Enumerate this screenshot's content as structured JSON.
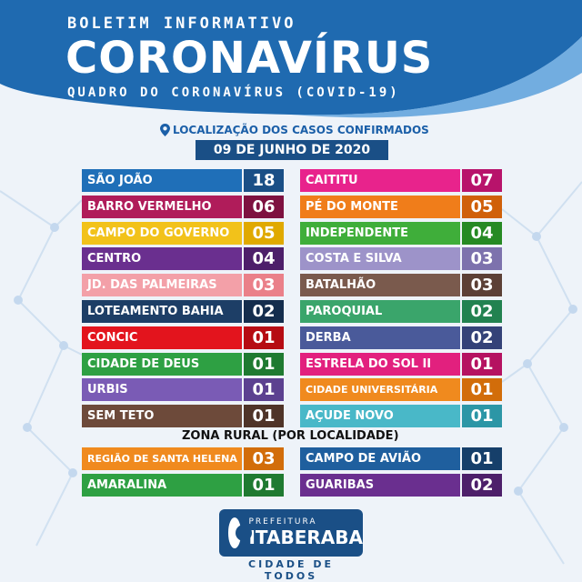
{
  "header": {
    "boletim": "BOLETIM INFORMATIVO",
    "title": "CORONAVÍRUS",
    "subtitle": "QUADRO DO CORONAVÍRUS (COVID-19)"
  },
  "location_label": "LOCALIZAÇÃO DOS CASOS CONFIRMADOS",
  "date": "09 DE JUNHO DE 2020",
  "left_list": [
    {
      "name": "SÃO JOÃO",
      "count": "18",
      "color": "#1f6fb8",
      "num_color": "#1a4f86"
    },
    {
      "name": "BARRO VERMELHO",
      "count": "06",
      "color": "#b01c5a",
      "num_color": "#7e1140"
    },
    {
      "name": "CAMPO DO GOVERNO",
      "count": "05",
      "color": "#f2c21a",
      "num_color": "#e0a900"
    },
    {
      "name": "CENTRO",
      "count": "04",
      "color": "#6a2f8f",
      "num_color": "#4d1f6a"
    },
    {
      "name": "JD. DAS PALMEIRAS",
      "count": "03",
      "color": "#f3a0a8",
      "num_color": "#ea8089"
    },
    {
      "name": "LOTEAMENTO BAHIA",
      "count": "02",
      "color": "#1d3e66",
      "num_color": "#142d4d"
    },
    {
      "name": "CONCIC",
      "count": "01",
      "color": "#e3141d",
      "num_color": "#b60c13"
    },
    {
      "name": "CIDADE DE DEUS",
      "count": "01",
      "color": "#2ea043",
      "num_color": "#1f7a31"
    },
    {
      "name": "URBIS",
      "count": "01",
      "color": "#7a5bb5",
      "num_color": "#5c4190"
    },
    {
      "name": "SEM TETO",
      "count": "01",
      "color": "#6d4a3a",
      "num_color": "#4f3428"
    }
  ],
  "right_list": [
    {
      "name": "CAITITU",
      "count": "07",
      "color": "#e8238c",
      "num_color": "#b8136b"
    },
    {
      "name": "PÉ DO MONTE",
      "count": "05",
      "color": "#f07d1a",
      "num_color": "#d0600a"
    },
    {
      "name": "INDEPENDENTE",
      "count": "04",
      "color": "#3fae3a",
      "num_color": "#268a23"
    },
    {
      "name": "COSTA E SILVA",
      "count": "03",
      "color": "#9d93c9",
      "num_color": "#7d72ad"
    },
    {
      "name": "BATALHÃO",
      "count": "03",
      "color": "#7a5a4d",
      "num_color": "#5c4036"
    },
    {
      "name": "PAROQUIAL",
      "count": "02",
      "color": "#3aa56b",
      "num_color": "#228250"
    },
    {
      "name": "DERBA",
      "count": "02",
      "color": "#4a5a9a",
      "num_color": "#344278"
    },
    {
      "name": "ESTRELA DO SOL II",
      "count": "01",
      "color": "#e2207e",
      "num_color": "#b51261"
    },
    {
      "name": "CIDADE UNIVERSITÁRIA",
      "count": "01",
      "color": "#f08a1e",
      "num_color": "#d26d0a"
    },
    {
      "name": "AÇUDE NOVO",
      "count": "01",
      "color": "#49b8c8",
      "num_color": "#2c96a6"
    }
  ],
  "zona_label": "ZONA RURAL (POR LOCALIDADE)",
  "rural_left": [
    {
      "name": "REGIÃO DE SANTA HELENA",
      "count": "03",
      "color": "#f08a1e",
      "num_color": "#d26d0a"
    },
    {
      "name": "AMARALINA",
      "count": "01",
      "color": "#2ea043",
      "num_color": "#1f7a31"
    }
  ],
  "rural_right": [
    {
      "name": "CAMPO DE AVIÃO",
      "count": "01",
      "color": "#1f5f9e",
      "num_color": "#163f6a"
    },
    {
      "name": "GUARIBAS",
      "count": "02",
      "color": "#6a2f8f",
      "num_color": "#4d1f6a"
    }
  ],
  "logo": {
    "prefeitura": "PREFEITURA",
    "city": "ITABERABA",
    "tagline": "CIDADE DE TODOS",
    "color": "#1a4f86"
  },
  "colors": {
    "header_blue": "#1f6ab0",
    "accent": "#1a4f86",
    "background": "#eef3f9"
  }
}
